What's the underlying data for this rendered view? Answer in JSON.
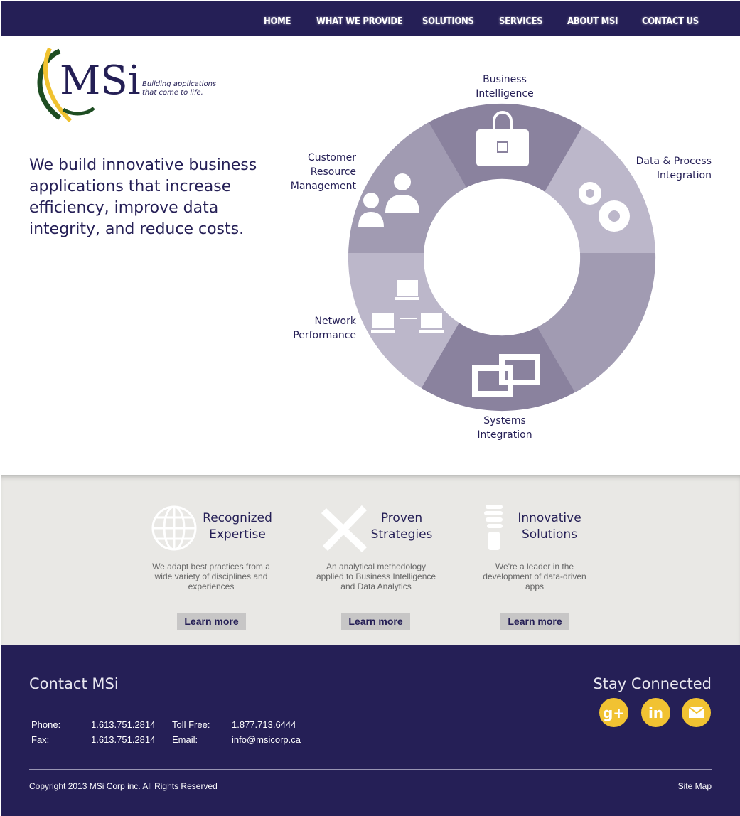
{
  "nav": {
    "items": [
      "HOME",
      "WHAT WE PROVIDE",
      "SOLUTIONS",
      "SERVICES",
      "ABOUT MSI",
      "CONTACT US"
    ]
  },
  "logo": {
    "text": "MSi",
    "tagline1": "Building applications",
    "tagline2": "that come to life."
  },
  "hero": {
    "tagline": "We build innovative business applications that increase efficiency, improve data integrity, and reduce costs."
  },
  "wheel": {
    "bi": [
      "Business",
      "Intelligence"
    ],
    "dpi": [
      "Data & Process",
      "Integration"
    ],
    "crm": [
      "Customer",
      "Resource",
      "Management"
    ],
    "net": [
      "Network",
      "Performance"
    ],
    "si": [
      "Systems",
      "Integration"
    ],
    "colors": {
      "dark": "#8a829e",
      "light": "#bcb7ca",
      "mid": "#a19bb2"
    }
  },
  "features": [
    {
      "icon": "globe-icon",
      "title1": "Recognized",
      "title2": "Expertise",
      "desc": "We adapt best practices from a wide variety of disciplines and experiences",
      "button": "Learn more"
    },
    {
      "icon": "tools-icon",
      "title1": "Proven",
      "title2": "Strategies",
      "desc": "An analytical methodology applied to Business Intelligence and Data Analytics",
      "button": "Learn more"
    },
    {
      "icon": "lightbulb-icon",
      "title1": "Innovative",
      "title2": "Solutions",
      "desc": "We're a leader in the development of data-driven apps",
      "button": "Learn more"
    }
  ],
  "footer": {
    "contact_title": "Contact MSi",
    "connect_title": "Stay Connected",
    "phone_label": "Phone:",
    "phone": "1.613.751.2814",
    "tollfree_label": "Toll Free:",
    "tollfree": "1.877.713.6444",
    "fax_label": "Fax:",
    "fax": "1.613.751.2814",
    "email_label": "Email:",
    "email": "info@msicorp.ca",
    "copyright": "Copyright 2013 MSi Corp inc. All Rights Reserved",
    "sitemap": "Site Map"
  }
}
